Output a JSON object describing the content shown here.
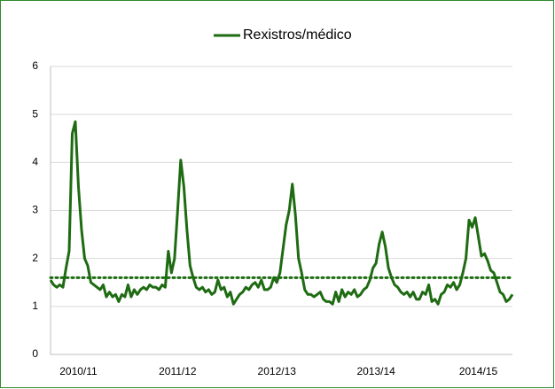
{
  "chart_data": {
    "type": "line",
    "categories": [
      null,
      null,
      null,
      null,
      null,
      null,
      null,
      null,
      null,
      "2010/11",
      null,
      null,
      null,
      null,
      null,
      null,
      null,
      null,
      null,
      null,
      null,
      null,
      null,
      null,
      null,
      null,
      null,
      null,
      null,
      null,
      null,
      null,
      null,
      null,
      null,
      null,
      null,
      null,
      null,
      null,
      null,
      "2011/12",
      null,
      null,
      null,
      null,
      null,
      null,
      null,
      null,
      null,
      null,
      null,
      null,
      null,
      null,
      null,
      null,
      null,
      null,
      null,
      null,
      null,
      null,
      null,
      null,
      null,
      null,
      null,
      null,
      null,
      null,
      null,
      "2012/13",
      null,
      null,
      null,
      null,
      null,
      null,
      null,
      null,
      null,
      null,
      null,
      null,
      null,
      null,
      null,
      null,
      null,
      null,
      null,
      null,
      null,
      null,
      null,
      null,
      null,
      null,
      null,
      null,
      null,
      null,
      null,
      "2013/14",
      null,
      null,
      null,
      null,
      null,
      null,
      null,
      null,
      null,
      null,
      null,
      null,
      null,
      null,
      null,
      null,
      null,
      null,
      null,
      null,
      null,
      null,
      null,
      null,
      null,
      null,
      null,
      null,
      null,
      null,
      null,
      null,
      "2014/15",
      null,
      null,
      null,
      null,
      null,
      null,
      null,
      null,
      null,
      null,
      null
    ],
    "series": [
      {
        "name": "Rexistros/médico",
        "color": "#1e6b12",
        "values": [
          1.55,
          1.45,
          1.4,
          1.45,
          1.4,
          1.8,
          2.15,
          4.6,
          4.85,
          3.5,
          2.6,
          2.0,
          1.85,
          1.5,
          1.45,
          1.4,
          1.35,
          1.45,
          1.2,
          1.3,
          1.2,
          1.25,
          1.1,
          1.25,
          1.2,
          1.45,
          1.2,
          1.35,
          1.25,
          1.35,
          1.4,
          1.35,
          1.45,
          1.4,
          1.4,
          1.35,
          1.45,
          1.4,
          2.15,
          1.7,
          2.0,
          3.0,
          4.05,
          3.5,
          2.6,
          1.85,
          1.6,
          1.4,
          1.35,
          1.4,
          1.3,
          1.35,
          1.25,
          1.3,
          1.55,
          1.35,
          1.4,
          1.2,
          1.3,
          1.05,
          1.15,
          1.25,
          1.3,
          1.4,
          1.35,
          1.45,
          1.5,
          1.4,
          1.55,
          1.35,
          1.35,
          1.4,
          1.6,
          1.5,
          1.7,
          2.2,
          2.7,
          3.0,
          3.55,
          2.9,
          2.0,
          1.7,
          1.35,
          1.25,
          1.25,
          1.2,
          1.25,
          1.3,
          1.15,
          1.1,
          1.1,
          1.05,
          1.3,
          1.1,
          1.35,
          1.2,
          1.3,
          1.25,
          1.35,
          1.2,
          1.25,
          1.35,
          1.4,
          1.55,
          1.8,
          1.9,
          2.3,
          2.55,
          2.25,
          1.8,
          1.6,
          1.45,
          1.4,
          1.3,
          1.25,
          1.3,
          1.2,
          1.3,
          1.15,
          1.15,
          1.3,
          1.25,
          1.45,
          1.1,
          1.15,
          1.05,
          1.25,
          1.3,
          1.45,
          1.4,
          1.5,
          1.35,
          1.45,
          1.7,
          2.0,
          2.8,
          2.65,
          2.85,
          2.45,
          2.05,
          2.1,
          1.95,
          1.75,
          1.7,
          1.5,
          1.3,
          1.25,
          1.1,
          1.15,
          1.25
        ]
      }
    ],
    "threshold": 1.6,
    "ylim": [
      0,
      6
    ],
    "yticks": [
      0,
      1,
      2,
      3,
      4,
      5,
      6
    ],
    "grid": true,
    "legend": "top"
  }
}
